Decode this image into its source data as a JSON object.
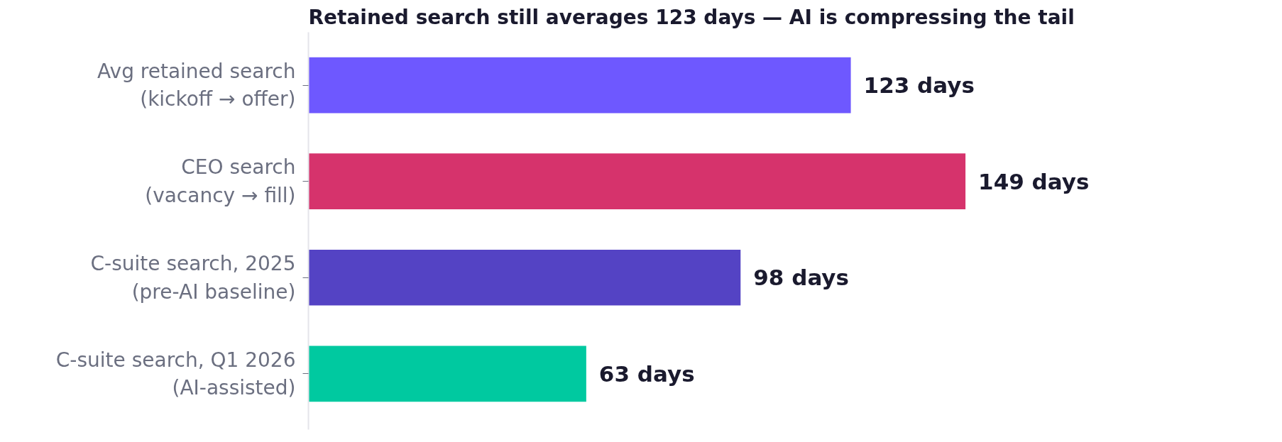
{
  "chart_data": {
    "type": "bar",
    "orientation": "horizontal",
    "title": "Retained search still averages 123 days — AI is compressing the tail",
    "categories": [
      "Avg retained search\n(kickoff → offer)",
      "CEO search\n(vacancy → fill)",
      "C-suite search, 2025\n(pre-AI baseline)",
      "C-suite search, Q1 2026\n(AI-assisted)"
    ],
    "values": [
      123,
      149,
      98,
      63
    ],
    "colors": [
      "#6e58ff",
      "#d6336c",
      "#5443c4",
      "#00c9a0"
    ],
    "value_labels": [
      "123 days",
      "149 days",
      "98 days",
      "63 days"
    ],
    "grid": false,
    "tick_labels": "y"
  }
}
